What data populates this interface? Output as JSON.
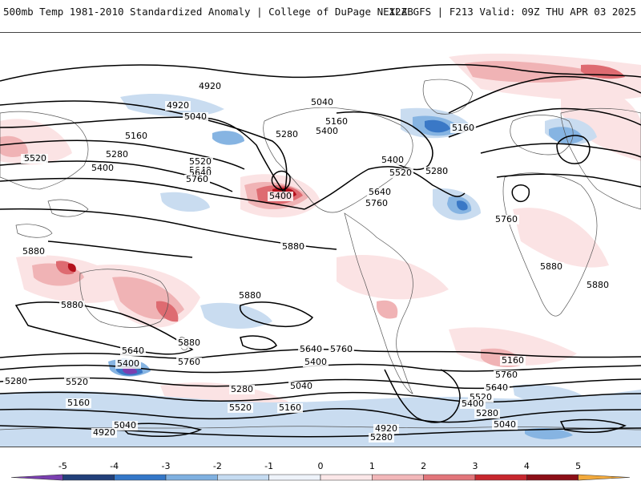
{
  "header": {
    "title_left": "500mb Temp 1981-2010 Standardized Anomaly | College of DuPage NEXLAB",
    "title_right": "12Z GFS | F213 Valid: 09Z THU APR 03 2025"
  },
  "contour_labels": [
    "5040",
    "4920",
    "5040",
    "5040",
    "5160",
    "5160",
    "5160",
    "5400",
    "5520",
    "5280",
    "5280",
    "5280",
    "5520",
    "5640",
    "5760",
    "5520",
    "5400",
    "5640",
    "5760",
    "5400",
    "5400",
    "5520",
    "5640",
    "5760",
    "5280",
    "5760",
    "5880",
    "5880",
    "5880",
    "5880",
    "5880",
    "5880",
    "5880",
    "5760",
    "5640",
    "5400",
    "5280",
    "5520",
    "5160",
    "5040",
    "4920",
    "5640",
    "5400",
    "5760",
    "5280",
    "5520",
    "5040",
    "5160",
    "4920",
    "5280",
    "5160",
    "5760",
    "5640",
    "5520",
    "5400",
    "5280",
    "5040",
    "4920"
  ],
  "colorbar": {
    "ticks": [
      "-5",
      "-4",
      "-3",
      "-2",
      "-1",
      "0",
      "1",
      "2",
      "3",
      "4",
      "5"
    ],
    "colors": [
      "#7a3fb0",
      "#22407a",
      "#3477c8",
      "#7fb0e0",
      "#c5dbf1",
      "#eef3fa",
      "#fbe7e8",
      "#f2b7b9",
      "#e2757a",
      "#c7272e",
      "#8c0f17",
      "#f2a93b"
    ]
  },
  "map_colors": {
    "cold_light": "#c9dcf0",
    "cold_mid": "#86b4e2",
    "cold_strong": "#3a78c6",
    "cold_extreme": "#7a3fb0",
    "warm_light": "#fbe3e4",
    "warm_mid": "#f0b3b5",
    "warm_strong": "#de6b71",
    "warm_extreme": "#b4111c",
    "contour": "#000000",
    "land": "#555555"
  }
}
